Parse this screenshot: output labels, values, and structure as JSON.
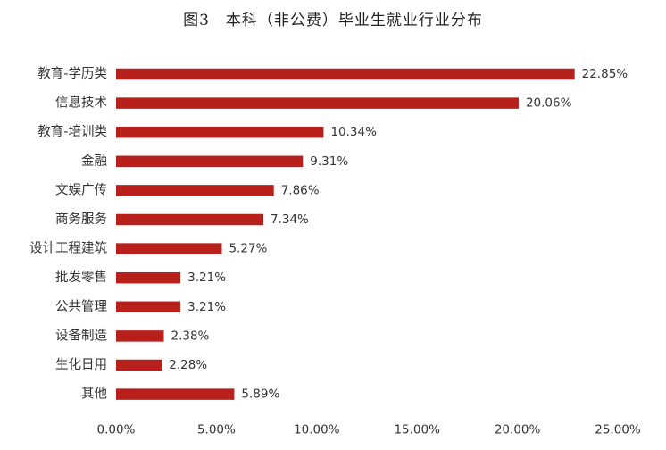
{
  "chart_data": {
    "type": "bar",
    "orientation": "horizontal",
    "title": "图3　本科（非公费）毕业生就业行业分布",
    "categories": [
      "教育-学历类",
      "信息技术",
      "教育-培训类",
      "金融",
      "文娱广传",
      "商务服务",
      "设计工程建筑",
      "批发零售",
      "公共管理",
      "设备制造",
      "生化日用",
      "其他"
    ],
    "values": [
      22.85,
      20.06,
      10.34,
      9.31,
      7.86,
      7.34,
      5.27,
      3.21,
      3.21,
      2.38,
      2.28,
      5.89
    ],
    "value_labels": [
      "22.85%",
      "20.06%",
      "10.34%",
      "9.31%",
      "7.86%",
      "7.34%",
      "5.27%",
      "3.21%",
      "3.21%",
      "2.38%",
      "2.28%",
      "5.89%"
    ],
    "xlim": [
      0,
      25
    ],
    "xticks": [
      0,
      5,
      10,
      15,
      20,
      25
    ],
    "xtick_labels": [
      "0.00%",
      "5.00%",
      "10.00%",
      "15.00%",
      "20.00%",
      "25.00%"
    ],
    "bar_color": "#B8201C",
    "grid": false,
    "legend": "none"
  }
}
